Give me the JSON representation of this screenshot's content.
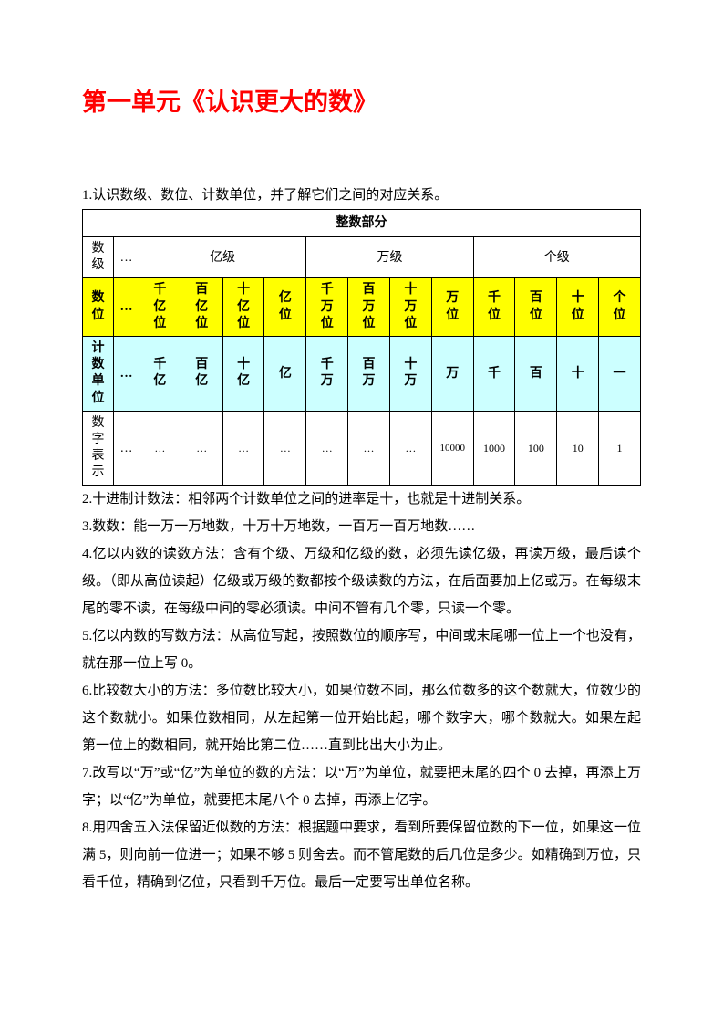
{
  "title": "第一单元《认识更大的数》",
  "p1": "1.认识数级、数位、计数单位，并了解它们之间的对应关系。",
  "table": {
    "main_header": "整数部分",
    "row1_label": "数级",
    "row1_ellipsis": "…",
    "row1_yi": "亿级",
    "row1_wan": "万级",
    "row1_ge": "个级",
    "row2_label": "数位",
    "row2_ellipsis": "…",
    "row2_cells": [
      "千亿位",
      "百亿位",
      "十亿位",
      "亿位",
      "千万位",
      "百万位",
      "十万位",
      "万位",
      "千位",
      "百位",
      "十位",
      "个位"
    ],
    "row3_label": "计数单位",
    "row3_ellipsis": "…",
    "row3_cells": [
      "千亿",
      "百亿",
      "十亿",
      "亿",
      "千万",
      "百万",
      "十万",
      "万",
      "千",
      "百",
      "十",
      "一"
    ],
    "row4_label": "数字表示",
    "row4_ellipsis": "…",
    "row4_cells": [
      "…",
      "…",
      "…",
      "…",
      "…",
      "…",
      "…",
      "10000",
      "1000",
      "100",
      "10",
      "1"
    ],
    "colors": {
      "header_bg": "#ffffff",
      "yellow": "#ffff00",
      "cyan": "#ccffff"
    }
  },
  "p2": "2.十进制计数法：相邻两个计数单位之间的进率是十，也就是十进制关系。",
  "p3": "3.数数：能一万一万地数，十万十万地数，一百万一百万地数……",
  "p4": "4.亿以内数的读数方法：含有个级、万级和亿级的数，必须先读亿级，再读万级，最后读个级。（即从高位读起）亿级或万级的数都按个级读数的方法，在后面要加上亿或万。在每级末尾的零不读，在每级中间的零必须读。中间不管有几个零，只读一个零。",
  "p5": "5.亿以内数的写数方法：从高位写起，按照数位的顺序写，中间或末尾哪一位上一个也没有，就在那一位上写 0。",
  "p6": "6.比较数大小的方法：多位数比较大小，如果位数不同，那么位数多的这个数就大，位数少的这个数就小。如果位数相同，从左起第一位开始比起，哪个数字大，哪个数就大。如果左起第一位上的数相同，就开始比第二位……直到比出大小为止。",
  "p7": "7.改写以“万”或“亿”为单位的数的方法：以“万”为单位，就要把末尾的四个 0 去掉，再添上万字；以“亿”为单位，就要把末尾八个 0 去掉，再添上亿字。",
  "p8": "8.用四舍五入法保留近似数的方法：根据题中要求，看到所要保留位数的下一位，如果这一位满 5，则向前一位进一；如果不够 5 则舍去。而不管尾数的后几位是多少。如精确到万位，只看千位，精确到亿位，只看到千万位。最后一定要写出单位名称。"
}
